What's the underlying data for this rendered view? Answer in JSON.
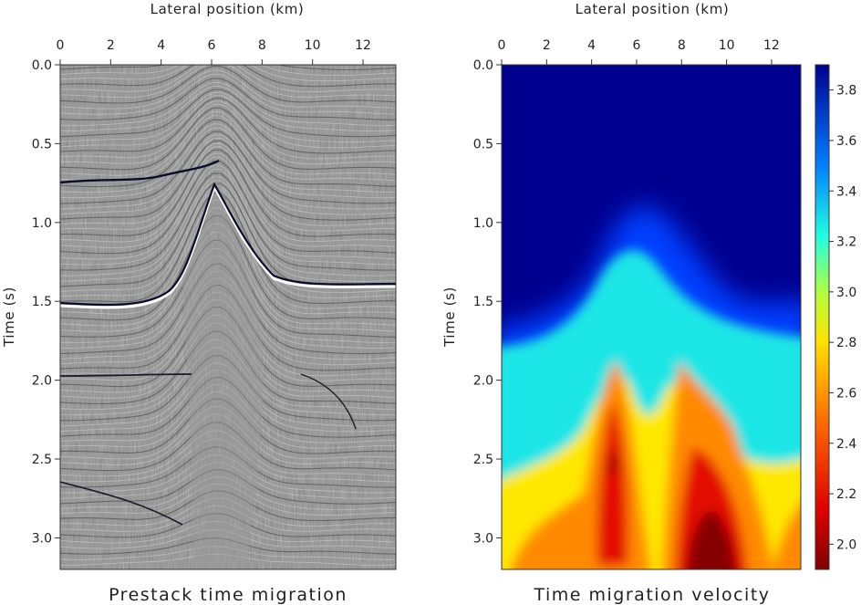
{
  "chart_data": [
    {
      "type": "heatmap",
      "title": "Prestack time migration",
      "xlabel": "Lateral position (km)",
      "ylabel": "Time (s)",
      "xlim": [
        0,
        13.3
      ],
      "ylim": [
        3.2,
        0.0
      ],
      "x_ticks": [
        0,
        2,
        4,
        6,
        8,
        10,
        12
      ],
      "y_ticks": [
        0.0,
        0.5,
        1.0,
        1.5,
        2.0,
        2.5,
        3.0
      ],
      "x_tick_labels": [
        "0",
        "2",
        "4",
        "6",
        "8",
        "10",
        "12"
      ],
      "y_tick_labels": [
        "0.0",
        "0.5",
        "1.0",
        "1.5",
        "2.0",
        "2.5",
        "3.0"
      ],
      "colormap": "grayscale seismic amplitude",
      "grid": false
    },
    {
      "type": "heatmap",
      "title": "Time migration velocity",
      "xlabel": "Lateral position (km)",
      "ylabel": "Time (s)",
      "xlim": [
        0,
        13.3
      ],
      "ylim": [
        3.2,
        0.0
      ],
      "x_ticks": [
        0,
        2,
        4,
        6,
        8,
        10,
        12
      ],
      "y_ticks": [
        0.0,
        0.5,
        1.0,
        1.5,
        2.0,
        2.5,
        3.0
      ],
      "x_tick_labels": [
        "0",
        "2",
        "4",
        "6",
        "8",
        "10",
        "12"
      ],
      "y_tick_labels": [
        "0.0",
        "0.5",
        "1.0",
        "1.5",
        "2.0",
        "2.5",
        "3.0"
      ],
      "colormap": "jet",
      "colorbar": {
        "range": [
          1.9,
          3.9
        ],
        "ticks": [
          "2.0",
          "2.2",
          "2.4",
          "2.6",
          "2.8",
          "3.0",
          "3.2",
          "3.4",
          "3.6",
          "3.8"
        ],
        "tick_values": [
          2.0,
          2.2,
          2.4,
          2.6,
          2.8,
          3.0,
          3.2,
          3.4,
          3.6,
          3.8
        ]
      },
      "grid": false
    }
  ]
}
